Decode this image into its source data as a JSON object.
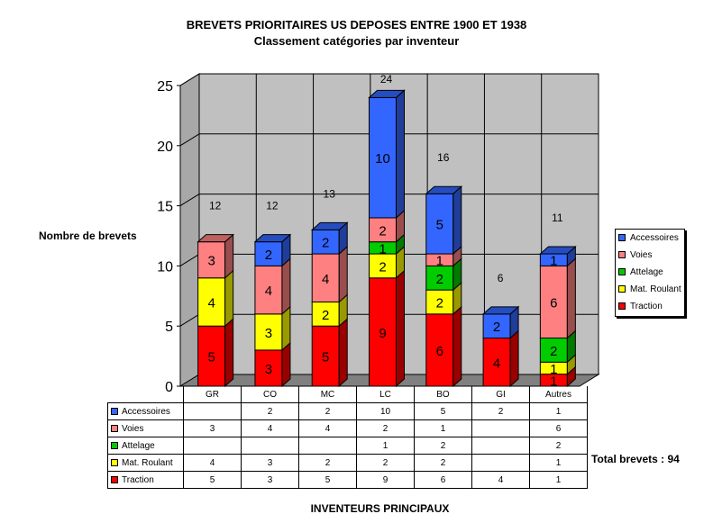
{
  "title": "BREVETS PRIORITAIRES US DEPOSES ENTRE 1900 ET 1938",
  "subtitle": "Classement  catégories par inventeur",
  "ylabel": "Nombre de brevets",
  "xlabel": "INVENTEURS PRINCIPAUX",
  "total_label": "Total brevets : 94",
  "chart_data": {
    "type": "bar",
    "stacked": true,
    "three_d": true,
    "categories": [
      "GR",
      "CO",
      "MC",
      "LC",
      "BO",
      "GI",
      "Autres"
    ],
    "series": [
      {
        "name": "Traction",
        "color": "#ff0000",
        "values": [
          5,
          3,
          5,
          9,
          6,
          4,
          1
        ]
      },
      {
        "name": "Mat. Roulant",
        "color": "#ffff00",
        "values": [
          4,
          3,
          2,
          2,
          2,
          null,
          1
        ]
      },
      {
        "name": "Attelage",
        "color": "#00cc00",
        "values": [
          null,
          null,
          null,
          1,
          2,
          null,
          2
        ]
      },
      {
        "name": "Voies",
        "color": "#ff8080",
        "values": [
          3,
          4,
          4,
          2,
          1,
          null,
          6
        ]
      },
      {
        "name": "Accessoires",
        "color": "#3366ff",
        "values": [
          null,
          2,
          2,
          10,
          5,
          2,
          1
        ]
      }
    ],
    "totals": [
      12,
      12,
      13,
      24,
      16,
      6,
      11
    ],
    "ylim": [
      0,
      25
    ],
    "yticks": [
      0,
      5,
      10,
      15,
      20,
      25
    ],
    "legend_position": "right",
    "legend_order": [
      "Accessoires",
      "Voies",
      "Attelage",
      "Mat. Roulant",
      "Traction"
    ],
    "table_order": [
      "Accessoires",
      "Voies",
      "Attelage",
      "Mat. Roulant",
      "Traction"
    ],
    "grid": true
  }
}
